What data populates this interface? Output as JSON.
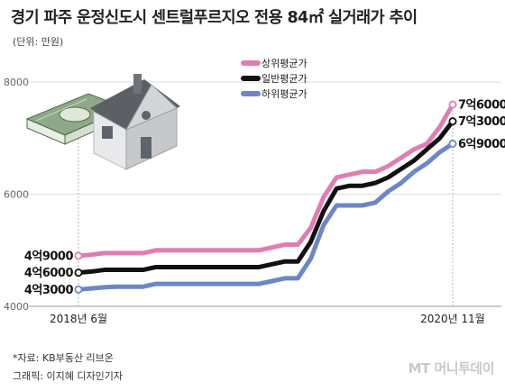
{
  "header": {
    "title": "경기 파주 운정신도시 센트럴푸르지오 전용 84㎡ 실거래가 추이",
    "unit": "(단위: 만원)"
  },
  "footer": {
    "source": "*자료: KB부동산 리브온",
    "credit": "그래픽: 이지혜 디자인기자",
    "logo": "MT 머니투데이"
  },
  "colors": {
    "upper": "#e07db2",
    "general": "#111111",
    "lower": "#6c86c6",
    "grid": "#dddddd",
    "axis": "#999999"
  },
  "illustration": "house-and-money-icon",
  "chart_data": {
    "type": "line",
    "title": "경기 파주 운정신도시 센트럴푸르지오 전용 84㎡ 실거래가 추이",
    "ylabel": "(단위: 만원)",
    "ylim": [
      4000,
      8500
    ],
    "yticks": [
      4000,
      6000,
      8000
    ],
    "ytick_labels": [
      "4000",
      "6000",
      "8000"
    ],
    "x_labels": [
      "2018년 6월",
      "2020년 11월"
    ],
    "x": [
      "2018-06",
      "2018-07",
      "2018-08",
      "2018-09",
      "2018-10",
      "2018-11",
      "2018-12",
      "2019-01",
      "2019-02",
      "2019-03",
      "2019-04",
      "2019-05",
      "2019-06",
      "2019-07",
      "2019-08",
      "2019-09",
      "2019-10",
      "2019-11",
      "2019-12",
      "2020-01",
      "2020-02",
      "2020-03",
      "2020-04",
      "2020-05",
      "2020-06",
      "2020-07",
      "2020-08",
      "2020-09",
      "2020-10",
      "2020-11"
    ],
    "grid": true,
    "legend": "top-center",
    "series": [
      {
        "name": "상위평균가",
        "color_key": "upper",
        "values": [
          4900,
          4920,
          4950,
          4950,
          4950,
          4950,
          5000,
          5000,
          5000,
          5000,
          5000,
          5000,
          5000,
          5000,
          5000,
          5050,
          5100,
          5100,
          5400,
          5950,
          6300,
          6350,
          6400,
          6400,
          6500,
          6650,
          6800,
          6900,
          7200,
          7600
        ],
        "start_label": "4억9000",
        "end_label": "7억6000"
      },
      {
        "name": "일반평균가",
        "color_key": "general",
        "values": [
          4600,
          4620,
          4650,
          4650,
          4650,
          4650,
          4700,
          4700,
          4700,
          4700,
          4700,
          4700,
          4700,
          4700,
          4700,
          4750,
          4800,
          4800,
          5150,
          5700,
          6100,
          6150,
          6150,
          6200,
          6300,
          6450,
          6600,
          6800,
          7000,
          7300
        ],
        "start_label": "4억6000",
        "end_label": "7억3000"
      },
      {
        "name": "하위평균가",
        "color_key": "lower",
        "values": [
          4300,
          4320,
          4340,
          4350,
          4350,
          4350,
          4400,
          4400,
          4400,
          4400,
          4400,
          4400,
          4400,
          4400,
          4400,
          4450,
          4500,
          4500,
          4850,
          5450,
          5800,
          5800,
          5800,
          5850,
          6050,
          6200,
          6400,
          6550,
          6750,
          6900
        ],
        "start_label": "4억3000",
        "end_label": "6억9000"
      }
    ]
  }
}
